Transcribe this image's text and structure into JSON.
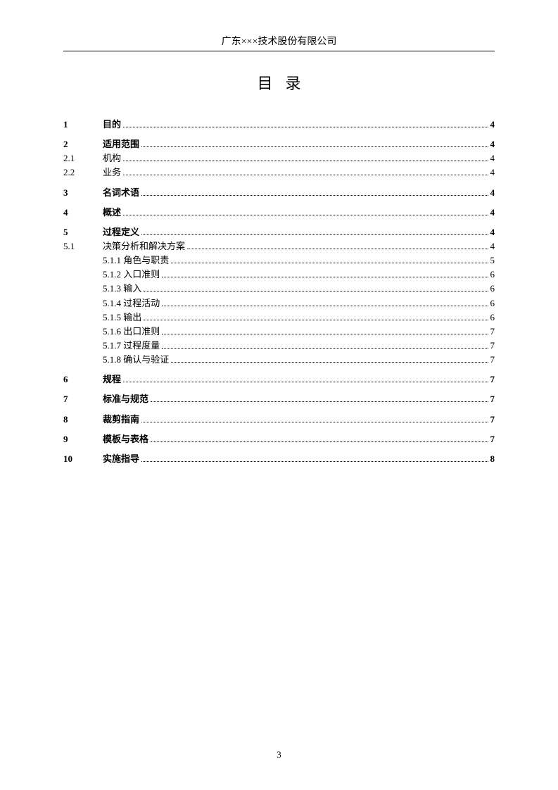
{
  "header": "广东×××技术股份有限公司",
  "title": "目录",
  "page_number": "3",
  "toc": [
    {
      "type": "bold-section",
      "num": "1",
      "label": "目的",
      "page": "4"
    },
    {
      "type": "bold-section",
      "num": "2",
      "label": "适用范围",
      "page": "4"
    },
    {
      "type": "normal",
      "num": "2.1",
      "label": "机构",
      "page": "4"
    },
    {
      "type": "normal",
      "num": "2.2",
      "label": "业务",
      "page": "4"
    },
    {
      "type": "bold-section",
      "num": "3",
      "label": "名词术语",
      "page": "4"
    },
    {
      "type": "bold-section",
      "num": "4",
      "label": "概述",
      "page": "4"
    },
    {
      "type": "bold-section",
      "num": "5",
      "label": "过程定义",
      "page": "4"
    },
    {
      "type": "normal",
      "num": "5.1",
      "label": "决策分析和解决方案",
      "page": "4"
    },
    {
      "type": "sub",
      "num": "",
      "label": "5.1.1 角色与职责",
      "page": "5"
    },
    {
      "type": "sub",
      "num": "",
      "label": "5.1.2 入口准则",
      "page": "6"
    },
    {
      "type": "sub",
      "num": "",
      "label": "5.1.3 输入",
      "page": "6"
    },
    {
      "type": "sub",
      "num": "",
      "label": "5.1.4 过程活动",
      "page": "6"
    },
    {
      "type": "sub",
      "num": "",
      "label": "5.1.5 输出",
      "page": "6"
    },
    {
      "type": "sub",
      "num": "",
      "label": "5.1.6 出口准则",
      "page": "7"
    },
    {
      "type": "sub",
      "num": "",
      "label": "5.1.7 过程度量",
      "page": "7"
    },
    {
      "type": "sub",
      "num": "",
      "label": "5.1.8 确认与验证",
      "page": "7"
    },
    {
      "type": "bold-section",
      "num": "6",
      "label": "规程",
      "page": "7"
    },
    {
      "type": "bold-section",
      "num": "7",
      "label": "标准与规范",
      "page": "7"
    },
    {
      "type": "bold-section",
      "num": "8",
      "label": "裁剪指南",
      "page": "7"
    },
    {
      "type": "bold-section",
      "num": "9",
      "label": "模板与表格",
      "page": "7"
    },
    {
      "type": "bold-section",
      "num": "10",
      "label": "实施指导",
      "page": "8"
    }
  ]
}
